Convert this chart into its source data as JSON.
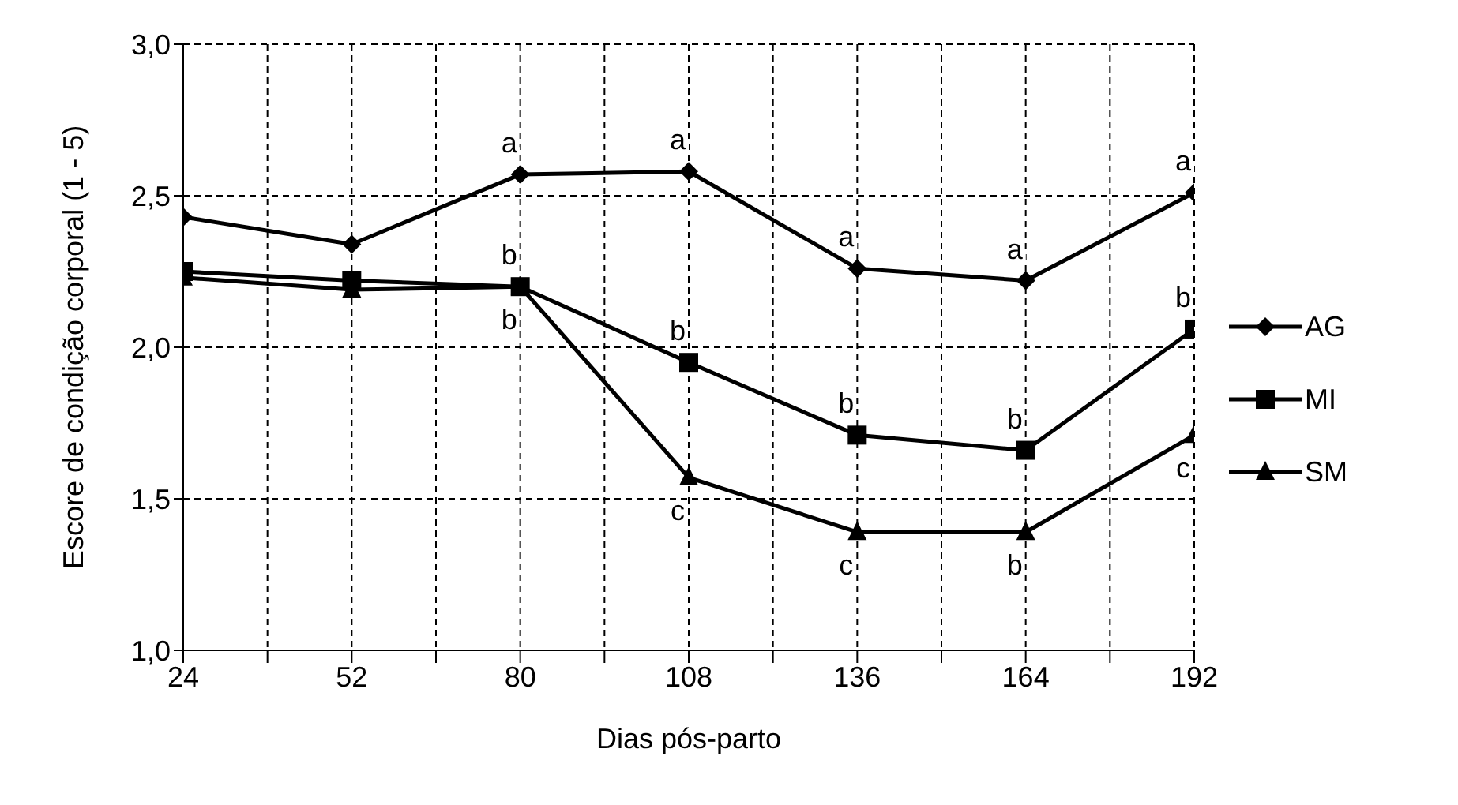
{
  "chart_data": {
    "type": "line",
    "xlabel": "Dias pós-parto",
    "ylabel": "Escore de condição corporal (1 - 5)",
    "x": [
      24,
      52,
      80,
      108,
      136,
      164,
      192
    ],
    "series": [
      {
        "name": "AG",
        "color": "#000000",
        "marker": "diamond",
        "values": [
          2.43,
          2.34,
          2.57,
          2.58,
          2.26,
          2.22,
          2.51
        ]
      },
      {
        "name": "MI",
        "color": "#000000",
        "marker": "square",
        "values": [
          2.25,
          2.22,
          2.2,
          1.95,
          1.71,
          1.66,
          2.06
        ]
      },
      {
        "name": "SM",
        "color": "#000000",
        "marker": "triangle",
        "values": [
          2.23,
          2.19,
          2.2,
          1.57,
          1.39,
          1.39,
          1.71
        ]
      }
    ],
    "xlim": [
      24,
      192
    ],
    "xticks": [
      24,
      {
        "value": 38,
        "label": null
      },
      52,
      {
        "value": 66,
        "label": null
      },
      80,
      {
        "value": 94,
        "label": null
      },
      108,
      {
        "value": 122,
        "label": null
      },
      136,
      {
        "value": 150,
        "label": null
      },
      164,
      {
        "value": 178,
        "label": null
      },
      192
    ],
    "ylim": [
      1,
      3
    ],
    "yticks": [
      {
        "value": 1,
        "label": "1,0"
      },
      {
        "value": 1.5,
        "label": "1,5"
      },
      {
        "value": 2,
        "label": "2,0"
      },
      {
        "value": 2.5,
        "label": "2,5"
      },
      {
        "value": 3,
        "label": "3,0"
      }
    ],
    "grid": true,
    "legend": "right",
    "line_style": "solid",
    "annotations": [
      {
        "text": "a",
        "x": 80,
        "y": 2.57
      },
      {
        "text": "a",
        "x": 108,
        "y": 2.58
      },
      {
        "text": "a",
        "x": 136,
        "y": 2.26
      },
      {
        "text": "a",
        "x": 164,
        "y": 2.22
      },
      {
        "text": "a",
        "x": 192,
        "y": 2.51
      },
      {
        "text": "b",
        "x": 80,
        "y": 2.2
      },
      {
        "text": "b",
        "x": 108,
        "y": 1.95
      },
      {
        "text": "b",
        "x": 136,
        "y": 1.71
      },
      {
        "text": "b",
        "x": 164,
        "y": 1.66
      },
      {
        "text": "b",
        "x": 192,
        "y": 2.06
      },
      {
        "text": "b",
        "x": 80,
        "y": 2.2
      },
      {
        "text": "c",
        "x": 108,
        "y": 1.57
      },
      {
        "text": "c",
        "x": 136,
        "y": 1.39
      },
      {
        "text": "b",
        "x": 164,
        "y": 1.39
      },
      {
        "text": "c",
        "x": 192,
        "y": 1.71
      }
    ]
  }
}
